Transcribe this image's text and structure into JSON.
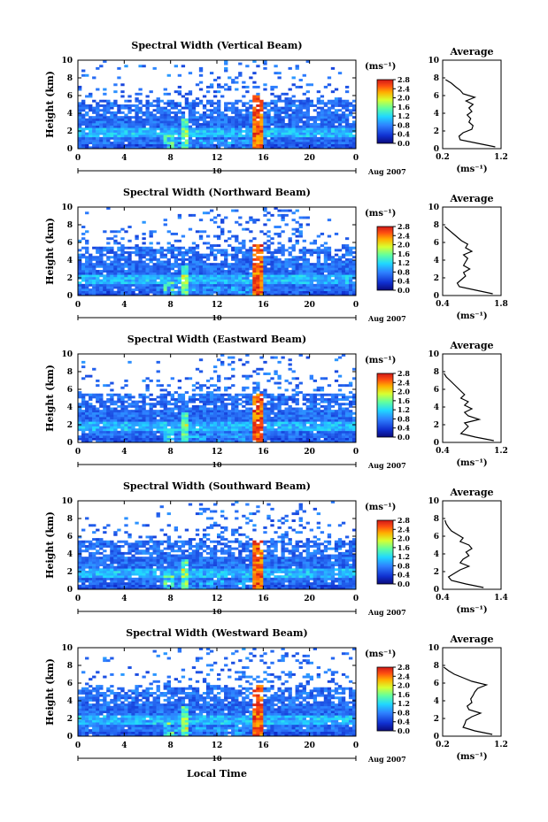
{
  "chart_data": [
    {
      "type": "heatmap",
      "title": "Spectral Width (Vertical Beam)",
      "ylabel": "Height (km)",
      "x_ticks": [
        "0",
        "4",
        "8",
        "12",
        "16",
        "20",
        "0"
      ],
      "y_ticks": [
        "0",
        "2",
        "4",
        "6",
        "8",
        "10"
      ],
      "xlim": [
        0,
        24
      ],
      "ylim": [
        0,
        10
      ],
      "date_label": "10",
      "date_suffix": "Aug 2007",
      "colorbar": {
        "unit": "(ms⁻¹)",
        "ticks": [
          "2.8",
          "2.4",
          "2.0",
          "1.6",
          "1.2",
          "0.8",
          "0.4",
          "0.0"
        ],
        "range": [
          0,
          2.8
        ]
      },
      "average": {
        "title": "Average",
        "xlabel": "(ms⁻¹)",
        "x_ticks": [
          "0.2",
          "1.2"
        ],
        "xlim": [
          0.2,
          1.2
        ],
        "y_ticks": [
          "0",
          "2",
          "4",
          "6",
          "8",
          "10"
        ],
        "profile": [
          [
            1.1,
            0.2
          ],
          [
            0.8,
            0.6
          ],
          [
            0.5,
            1.0
          ],
          [
            0.48,
            1.4
          ],
          [
            0.55,
            1.8
          ],
          [
            0.7,
            2.2
          ],
          [
            0.72,
            2.6
          ],
          [
            0.65,
            3.0
          ],
          [
            0.68,
            3.4
          ],
          [
            0.62,
            3.8
          ],
          [
            0.7,
            4.2
          ],
          [
            0.65,
            4.6
          ],
          [
            0.72,
            5.0
          ],
          [
            0.6,
            5.4
          ],
          [
            0.75,
            5.8
          ],
          [
            0.55,
            6.2
          ],
          [
            0.5,
            6.6
          ],
          [
            0.42,
            7.0
          ],
          [
            0.35,
            7.4
          ],
          [
            0.25,
            7.8
          ]
        ]
      },
      "features": {
        "high_width_column_hour": 15.6,
        "high_width_column_top_km": 6.0
      }
    },
    {
      "type": "heatmap",
      "title": "Spectral Width (Northward Beam)",
      "ylabel": "Height (km)",
      "x_ticks": [
        "0",
        "4",
        "8",
        "12",
        "16",
        "20",
        "0"
      ],
      "y_ticks": [
        "0",
        "2",
        "4",
        "6",
        "8",
        "10"
      ],
      "xlim": [
        0,
        24
      ],
      "ylim": [
        0,
        10
      ],
      "date_label": "10",
      "date_suffix": "Aug 2007",
      "colorbar": {
        "unit": "(ms⁻¹)",
        "ticks": [
          "2.8",
          "2.4",
          "2.0",
          "1.6",
          "1.2",
          "0.8",
          "0.4",
          "0.0"
        ],
        "range": [
          0,
          2.8
        ]
      },
      "average": {
        "title": "Average",
        "xlabel": "(ms⁻¹)",
        "x_ticks": [
          "0.4",
          "1.8"
        ],
        "xlim": [
          0.4,
          1.8
        ],
        "y_ticks": [
          "0",
          "2",
          "4",
          "6",
          "8",
          "10"
        ],
        "profile": [
          [
            1.6,
            0.2
          ],
          [
            1.2,
            0.6
          ],
          [
            0.8,
            1.0
          ],
          [
            0.75,
            1.4
          ],
          [
            0.85,
            1.8
          ],
          [
            0.95,
            2.2
          ],
          [
            0.9,
            2.6
          ],
          [
            1.05,
            3.0
          ],
          [
            0.9,
            3.4
          ],
          [
            0.95,
            3.8
          ],
          [
            1.0,
            4.2
          ],
          [
            0.9,
            4.6
          ],
          [
            1.1,
            5.0
          ],
          [
            0.95,
            5.4
          ],
          [
            1.0,
            5.8
          ],
          [
            0.85,
            6.2
          ],
          [
            0.75,
            6.6
          ],
          [
            0.65,
            7.0
          ],
          [
            0.55,
            7.4
          ],
          [
            0.45,
            7.8
          ]
        ]
      },
      "features": {
        "high_width_column_hour": 15.4,
        "high_width_column_top_km": 6.2
      }
    },
    {
      "type": "heatmap",
      "title": "Spectral Width (Eastward Beam)",
      "ylabel": "Height (km)",
      "x_ticks": [
        "0",
        "4",
        "8",
        "12",
        "16",
        "20",
        "0"
      ],
      "y_ticks": [
        "0",
        "2",
        "4",
        "6",
        "8",
        "10"
      ],
      "xlim": [
        0,
        24
      ],
      "ylim": [
        0,
        10
      ],
      "date_label": "10",
      "date_suffix": "Aug 2007",
      "colorbar": {
        "unit": "(ms⁻¹)",
        "ticks": [
          "2.8",
          "2.4",
          "2.0",
          "1.6",
          "1.2",
          "0.8",
          "0.4",
          "0.0"
        ],
        "range": [
          0,
          2.8
        ]
      },
      "average": {
        "title": "Average",
        "xlabel": "(ms⁻¹)",
        "x_ticks": [
          "0.4",
          "1.2"
        ],
        "xlim": [
          0.4,
          1.2
        ],
        "y_ticks": [
          "0",
          "2",
          "4",
          "6",
          "8",
          "10"
        ],
        "profile": [
          [
            1.1,
            0.2
          ],
          [
            0.85,
            0.6
          ],
          [
            0.65,
            1.0
          ],
          [
            0.7,
            1.4
          ],
          [
            0.75,
            1.8
          ],
          [
            0.7,
            2.2
          ],
          [
            0.9,
            2.6
          ],
          [
            0.75,
            3.0
          ],
          [
            0.7,
            3.4
          ],
          [
            0.8,
            3.8
          ],
          [
            0.7,
            4.2
          ],
          [
            0.75,
            4.6
          ],
          [
            0.65,
            5.0
          ],
          [
            0.7,
            5.4
          ],
          [
            0.65,
            5.8
          ],
          [
            0.6,
            6.2
          ],
          [
            0.55,
            6.6
          ],
          [
            0.5,
            7.0
          ],
          [
            0.45,
            7.4
          ],
          [
            0.42,
            7.8
          ]
        ]
      },
      "features": {
        "high_width_column_hour": 15.5,
        "high_width_column_top_km": 5.5
      }
    },
    {
      "type": "heatmap",
      "title": "Spectral Width (Southward Beam)",
      "ylabel": "Height (km)",
      "x_ticks": [
        "0",
        "4",
        "8",
        "12",
        "16",
        "20",
        "0"
      ],
      "y_ticks": [
        "0",
        "2",
        "4",
        "6",
        "8",
        "10"
      ],
      "xlim": [
        0,
        24
      ],
      "ylim": [
        0,
        10
      ],
      "date_label": "10",
      "date_suffix": "Aug 2007",
      "colorbar": {
        "unit": "(ms⁻¹)",
        "ticks": [
          "2.8",
          "2.4",
          "2.0",
          "1.6",
          "1.2",
          "0.8",
          "0.4",
          "0.0"
        ],
        "range": [
          0,
          2.8
        ]
      },
      "average": {
        "title": "Average",
        "xlabel": "(ms⁻¹)",
        "x_ticks": [
          "0.4",
          "1.4"
        ],
        "xlim": [
          0.4,
          1.4
        ],
        "y_ticks": [
          "0",
          "2",
          "4",
          "6",
          "8",
          "10"
        ],
        "profile": [
          [
            1.1,
            0.2
          ],
          [
            0.8,
            0.6
          ],
          [
            0.55,
            1.0
          ],
          [
            0.5,
            1.4
          ],
          [
            0.6,
            1.8
          ],
          [
            0.7,
            2.2
          ],
          [
            0.85,
            2.6
          ],
          [
            0.7,
            3.0
          ],
          [
            0.75,
            3.4
          ],
          [
            0.85,
            3.8
          ],
          [
            0.8,
            4.2
          ],
          [
            0.9,
            4.6
          ],
          [
            0.85,
            5.0
          ],
          [
            0.7,
            5.4
          ],
          [
            0.75,
            5.8
          ],
          [
            0.65,
            6.2
          ],
          [
            0.55,
            6.6
          ],
          [
            0.5,
            7.0
          ],
          [
            0.46,
            7.4
          ],
          [
            0.44,
            7.8
          ]
        ]
      },
      "features": {
        "high_width_column_hour": 15.5,
        "high_width_column_top_km": 6.0
      }
    },
    {
      "type": "heatmap",
      "title": "Spectral Width (Westward Beam)",
      "ylabel": "Height (km)",
      "x_ticks": [
        "0",
        "4",
        "8",
        "12",
        "16",
        "20",
        "0"
      ],
      "y_ticks": [
        "0",
        "2",
        "4",
        "6",
        "8",
        "10"
      ],
      "xlim": [
        0,
        24
      ],
      "ylim": [
        0,
        10
      ],
      "date_label": "10",
      "date_suffix": "Aug 2007",
      "colorbar": {
        "unit": "(ms⁻¹)",
        "ticks": [
          "2.8",
          "2.4",
          "2.0",
          "1.6",
          "1.2",
          "0.8",
          "0.4",
          "0.0"
        ],
        "range": [
          0,
          2.8
        ]
      },
      "average": {
        "title": "Average",
        "xlabel": "(ms⁻¹)",
        "x_ticks": [
          "0.2",
          "1.2"
        ],
        "xlim": [
          0.2,
          1.2
        ],
        "y_ticks": [
          "0",
          "2",
          "4",
          "6",
          "8",
          "10"
        ],
        "profile": [
          [
            1.05,
            0.2
          ],
          [
            0.75,
            0.6
          ],
          [
            0.55,
            1.0
          ],
          [
            0.58,
            1.4
          ],
          [
            0.6,
            1.8
          ],
          [
            0.7,
            2.2
          ],
          [
            0.85,
            2.6
          ],
          [
            0.65,
            3.0
          ],
          [
            0.62,
            3.4
          ],
          [
            0.7,
            3.8
          ],
          [
            0.68,
            4.2
          ],
          [
            0.72,
            4.6
          ],
          [
            0.75,
            5.0
          ],
          [
            0.8,
            5.4
          ],
          [
            0.95,
            5.8
          ],
          [
            0.7,
            6.2
          ],
          [
            0.55,
            6.6
          ],
          [
            0.4,
            7.0
          ],
          [
            0.3,
            7.4
          ],
          [
            0.22,
            7.8
          ]
        ]
      },
      "features": {
        "high_width_column_hour": 15.6,
        "high_width_column_top_km": 6.0
      }
    }
  ],
  "figure": {
    "xlabel": "Local Time"
  }
}
